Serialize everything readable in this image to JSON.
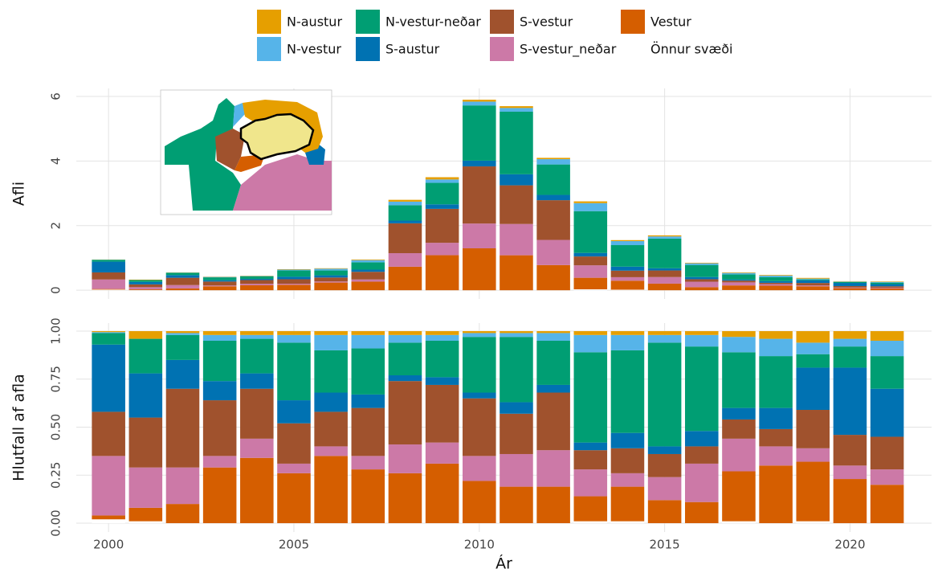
{
  "chart_data": [
    {
      "type": "bar",
      "stacked": true,
      "y_label": "Afli",
      "x": [
        2000,
        2001,
        2002,
        2003,
        2004,
        2005,
        2006,
        2007,
        2008,
        2009,
        2010,
        2011,
        2012,
        2013,
        2014,
        2015,
        2016,
        2017,
        2018,
        2019,
        2020,
        2021
      ],
      "xlim": [
        1999.13,
        2022.2
      ],
      "xticks": [
        2000,
        2005,
        2010,
        2015,
        2020
      ],
      "ylim": [
        -0.27,
        6.25
      ],
      "yticks": [
        0,
        2,
        4,
        6
      ],
      "grid": true,
      "series": [
        {
          "name": "N-austur",
          "color": "#E69F00",
          "values": [
            0.005,
            0.013,
            0.006,
            0.008,
            0.009,
            0.013,
            0.014,
            0.019,
            0.056,
            0.07,
            0.059,
            0.057,
            0.041,
            0.055,
            0.031,
            0.034,
            0.017,
            0.017,
            0.019,
            0.023,
            0.011,
            0.014
          ]
        },
        {
          "name": "N-vestur",
          "color": "#56B4E9",
          "values": [
            0.005,
            0,
            0.006,
            0.013,
            0.009,
            0.026,
            0.054,
            0.067,
            0.112,
            0.105,
            0.118,
            0.114,
            0.164,
            0.248,
            0.124,
            0.068,
            0.051,
            0.044,
            0.042,
            0.023,
            0.011,
            0.022
          ]
        },
        {
          "name": "N-vestur-neðar",
          "color": "#009E73",
          "values": [
            0.057,
            0.059,
            0.072,
            0.088,
            0.081,
            0.195,
            0.15,
            0.228,
            0.476,
            0.665,
            1.711,
            1.938,
            0.943,
            1.293,
            0.667,
            0.918,
            0.374,
            0.16,
            0.127,
            0.027,
            0.031,
            0.046
          ]
        },
        {
          "name": "S-austur",
          "color": "#0072B2",
          "values": [
            0.333,
            0.076,
            0.083,
            0.042,
            0.036,
            0.078,
            0.068,
            0.067,
            0.084,
            0.14,
            0.177,
            0.342,
            0.164,
            0.11,
            0.124,
            0.068,
            0.068,
            0.033,
            0.052,
            0.084,
            0.098,
            0.068
          ]
        },
        {
          "name": "S-vestur",
          "color": "#A0522D",
          "values": [
            0.219,
            0.086,
            0.226,
            0.122,
            0.117,
            0.137,
            0.122,
            0.238,
            0.924,
            1.05,
            1.77,
            1.197,
            1.23,
            0.275,
            0.202,
            0.204,
            0.077,
            0.055,
            0.042,
            0.076,
            0.045,
            0.046
          ]
        },
        {
          "name": "S-vestur_neðar",
          "color": "#CC79A7",
          "values": [
            0.295,
            0.069,
            0.105,
            0.025,
            0.045,
            0.033,
            0.034,
            0.067,
            0.42,
            0.385,
            0.767,
            0.969,
            0.779,
            0.385,
            0.109,
            0.204,
            0.17,
            0.094,
            0.047,
            0.027,
            0.02,
            0.022
          ]
        },
        {
          "name": "Vestur",
          "color": "#D55E00",
          "values": [
            0.019,
            0.023,
            0.055,
            0.122,
            0.153,
            0.169,
            0.238,
            0.266,
            0.728,
            1.085,
            1.298,
            1.083,
            0.779,
            0.358,
            0.279,
            0.204,
            0.094,
            0.143,
            0.141,
            0.118,
            0.064,
            0.054
          ]
        },
        {
          "name": "Önnur svæði",
          "color": "#ffffff",
          "values": [
            0.019,
            0.003,
            0,
            0,
            0,
            0,
            0,
            0,
            0,
            0,
            0,
            0,
            0,
            0.028,
            0.016,
            0,
            0,
            0.006,
            0,
            0.004,
            0,
            0
          ]
        }
      ]
    },
    {
      "type": "bar",
      "stacked": true,
      "y_label": "Hlutfall af afla",
      "x_label": "Ár",
      "x": [
        2000,
        2001,
        2002,
        2003,
        2004,
        2005,
        2006,
        2007,
        2008,
        2009,
        2010,
        2011,
        2012,
        2013,
        2014,
        2015,
        2016,
        2017,
        2018,
        2019,
        2020,
        2021
      ],
      "xlim": [
        1999.13,
        2022.2
      ],
      "xticks": [
        2000,
        2005,
        2010,
        2015,
        2020
      ],
      "ylim": [
        -0.046,
        1.042
      ],
      "yticks": [
        {
          "value": 0,
          "label": "0.00"
        },
        {
          "value": 0.25,
          "label": "0.25"
        },
        {
          "value": 0.5,
          "label": "0.50"
        },
        {
          "value": 0.75,
          "label": "0.75"
        },
        {
          "value": 1,
          "label": "1.00"
        }
      ],
      "grid": true,
      "series": [
        {
          "values": [
            0.005,
            0.04,
            0.01,
            0.02,
            0.02,
            0.02,
            0.02,
            0.02,
            0.02,
            0.02,
            0.01,
            0.01,
            0.01,
            0.02,
            0.02,
            0.02,
            0.02,
            0.03,
            0.04,
            0.06,
            0.04,
            0.05
          ]
        },
        {
          "values": [
            0.005,
            0,
            0.01,
            0.03,
            0.02,
            0.04,
            0.08,
            0.07,
            0.04,
            0.03,
            0.02,
            0.02,
            0.04,
            0.09,
            0.08,
            0.04,
            0.06,
            0.08,
            0.09,
            0.06,
            0.04,
            0.08
          ]
        },
        {
          "values": [
            0.06,
            0.18,
            0.13,
            0.21,
            0.18,
            0.3,
            0.22,
            0.24,
            0.17,
            0.19,
            0.29,
            0.34,
            0.23,
            0.47,
            0.43,
            0.54,
            0.44,
            0.29,
            0.27,
            0.07,
            0.11,
            0.17
          ]
        },
        {
          "values": [
            0.35,
            0.23,
            0.15,
            0.1,
            0.08,
            0.12,
            0.1,
            0.07,
            0.03,
            0.04,
            0.03,
            0.06,
            0.04,
            0.04,
            0.08,
            0.04,
            0.08,
            0.06,
            0.11,
            0.22,
            0.35,
            0.25
          ]
        },
        {
          "values": [
            0.23,
            0.26,
            0.41,
            0.29,
            0.26,
            0.21,
            0.18,
            0.25,
            0.33,
            0.3,
            0.3,
            0.21,
            0.3,
            0.1,
            0.13,
            0.12,
            0.09,
            0.1,
            0.09,
            0.2,
            0.16,
            0.17
          ]
        },
        {
          "values": [
            0.31,
            0.21,
            0.19,
            0.06,
            0.1,
            0.05,
            0.05,
            0.07,
            0.15,
            0.11,
            0.13,
            0.17,
            0.19,
            0.14,
            0.07,
            0.12,
            0.2,
            0.17,
            0.1,
            0.07,
            0.07,
            0.08
          ]
        },
        {
          "values": [
            0.02,
            0.07,
            0.1,
            0.29,
            0.34,
            0.26,
            0.35,
            0.28,
            0.26,
            0.31,
            0.22,
            0.19,
            0.19,
            0.13,
            0.18,
            0.12,
            0.11,
            0.26,
            0.3,
            0.31,
            0.23,
            0.2
          ]
        },
        {
          "values": [
            0.02,
            0.01,
            0,
            0,
            0,
            0,
            0,
            0,
            0,
            0,
            0,
            0,
            0,
            0.01,
            0.01,
            0,
            0,
            0.01,
            0,
            0.01,
            0,
            0
          ]
        }
      ]
    }
  ]
}
